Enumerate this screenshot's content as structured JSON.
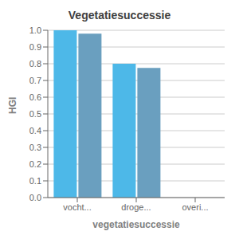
{
  "chart_data": {
    "type": "bar",
    "title": "Vegetatiesuccessie",
    "xlabel": "vegetatiesuccessie",
    "ylabel": "HGI",
    "categories": [
      "vocht...",
      "droge...",
      "overi..."
    ],
    "series": [
      {
        "color": "#4db8e8",
        "values": [
          1.0,
          0.8,
          0.0
        ]
      },
      {
        "color": "#6a9fbf",
        "values": [
          0.98,
          0.775,
          0.0
        ]
      }
    ],
    "ylim": [
      0.0,
      1.0
    ],
    "yticks": [
      {
        "value": 0,
        "label": "0.0"
      },
      0.1,
      0.2,
      0.3,
      0.4,
      0.5,
      0.6,
      0.7,
      0.8,
      0.9,
      {
        "value": 1,
        "label": "1.0"
      }
    ],
    "grid": true
  }
}
